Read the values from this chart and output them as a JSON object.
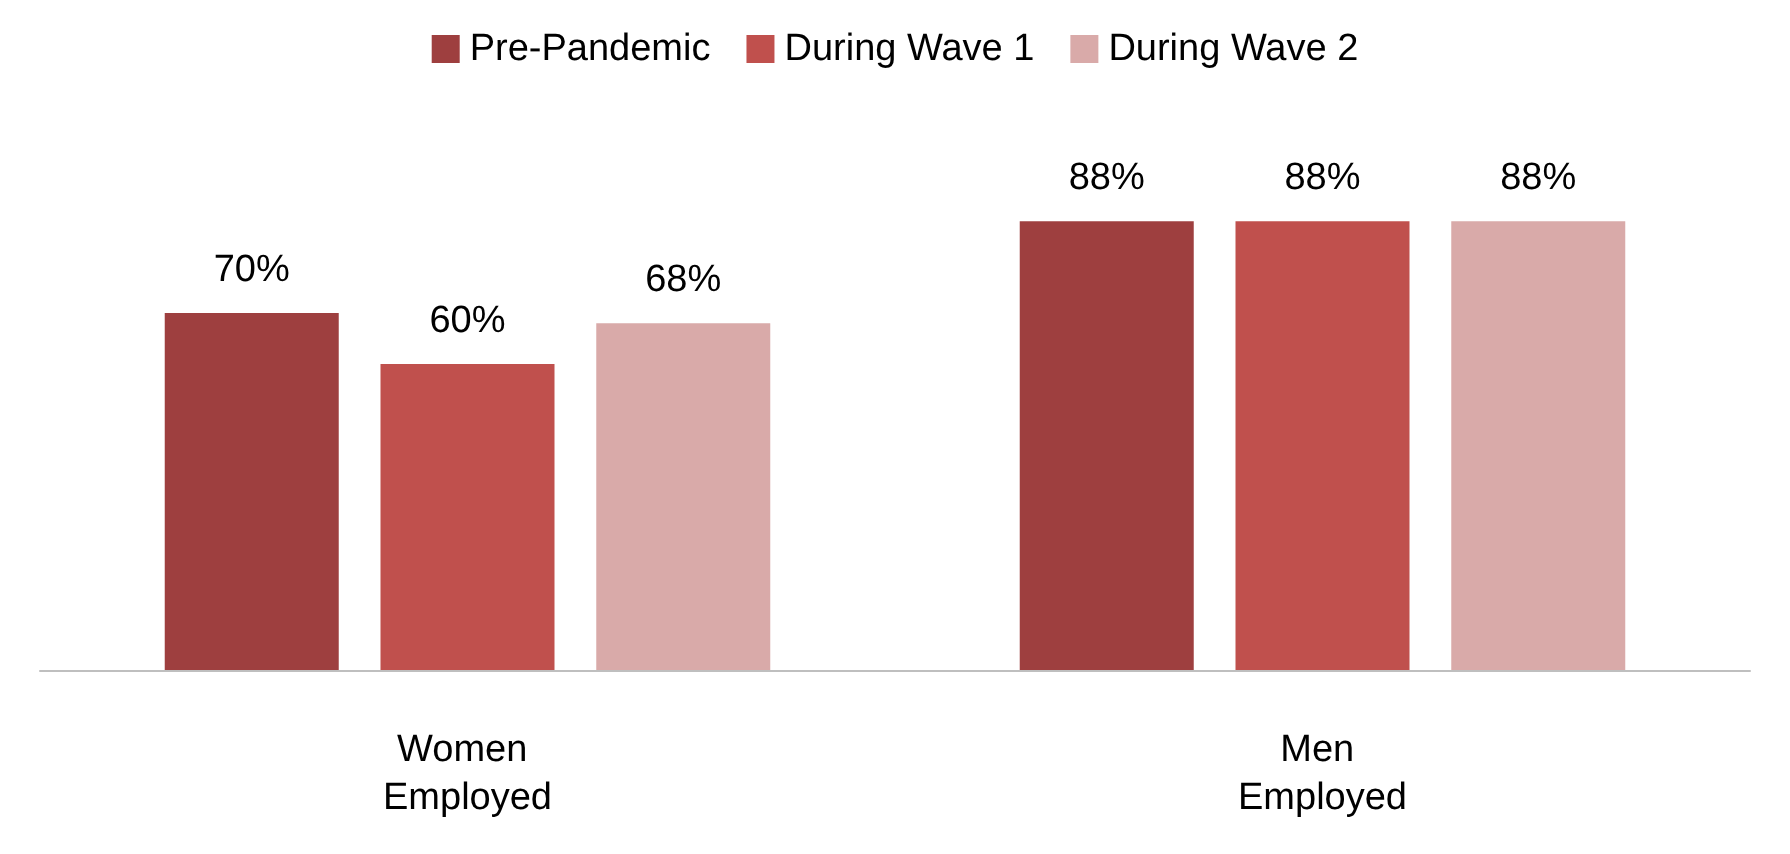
{
  "chart_data": {
    "type": "bar",
    "categories": [
      "Women Employed",
      "Men Employed"
    ],
    "series": [
      {
        "name": "Pre-Pandemic",
        "color": "#9e3f3f",
        "values": [
          70,
          88
        ],
        "value_labels": [
          "70%",
          "88%"
        ]
      },
      {
        "name": "During Wave 1",
        "color": "#c0504d",
        "values": [
          60,
          88
        ],
        "value_labels": [
          "60%",
          "88%"
        ]
      },
      {
        "name": "During Wave 2",
        "color": "#d9aaa9",
        "values": [
          68,
          88
        ],
        "value_labels": [
          "68%",
          "88%"
        ]
      }
    ],
    "legend": "top",
    "grid": false
  }
}
